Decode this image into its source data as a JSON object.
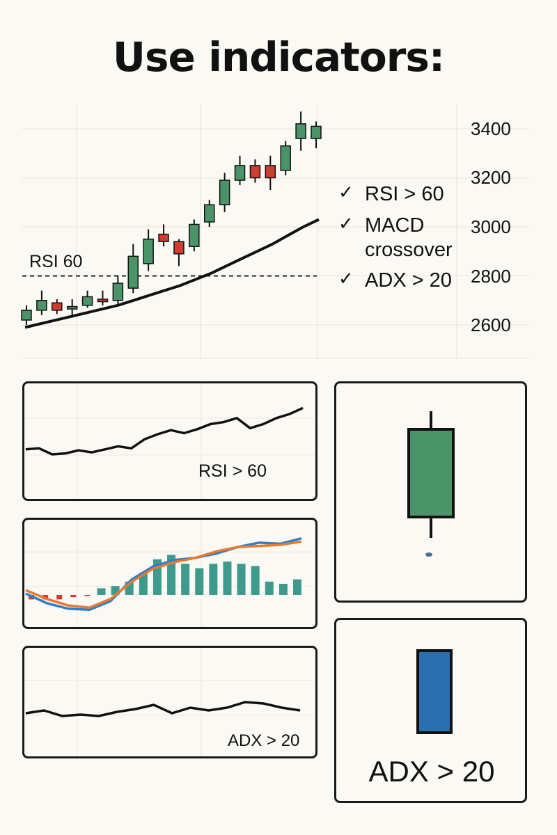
{
  "title": "Use indicators:",
  "chart_data": [
    {
      "type": "candlestick",
      "y_ticks": [
        3400,
        3200,
        3000,
        2800,
        2600
      ],
      "ylim": [
        2540,
        3470
      ],
      "threshold": {
        "label": "RSI 60",
        "value": 2800
      },
      "candles": [
        {
          "o": 2620,
          "c": 2660,
          "h": 2680,
          "l": 2600,
          "dir": "up"
        },
        {
          "o": 2660,
          "c": 2700,
          "h": 2740,
          "l": 2640,
          "dir": "up"
        },
        {
          "o": 2690,
          "c": 2660,
          "h": 2705,
          "l": 2645,
          "dir": "down"
        },
        {
          "o": 2665,
          "c": 2675,
          "h": 2705,
          "l": 2630,
          "dir": "up"
        },
        {
          "o": 2680,
          "c": 2715,
          "h": 2740,
          "l": 2670,
          "dir": "up"
        },
        {
          "o": 2705,
          "c": 2695,
          "h": 2740,
          "l": 2680,
          "dir": "down"
        },
        {
          "o": 2700,
          "c": 2770,
          "h": 2800,
          "l": 2680,
          "dir": "up"
        },
        {
          "o": 2750,
          "c": 2880,
          "h": 2930,
          "l": 2730,
          "dir": "up"
        },
        {
          "o": 2850,
          "c": 2950,
          "h": 2990,
          "l": 2820,
          "dir": "up"
        },
        {
          "o": 2970,
          "c": 2940,
          "h": 3010,
          "l": 2920,
          "dir": "down"
        },
        {
          "o": 2940,
          "c": 2890,
          "h": 2950,
          "l": 2840,
          "dir": "down"
        },
        {
          "o": 2920,
          "c": 3010,
          "h": 3030,
          "l": 2900,
          "dir": "up"
        },
        {
          "o": 3020,
          "c": 3090,
          "h": 3110,
          "l": 3000,
          "dir": "up"
        },
        {
          "o": 3090,
          "c": 3190,
          "h": 3220,
          "l": 3060,
          "dir": "up"
        },
        {
          "o": 3190,
          "c": 3250,
          "h": 3290,
          "l": 3170,
          "dir": "up"
        },
        {
          "o": 3250,
          "c": 3200,
          "h": 3275,
          "l": 3180,
          "dir": "down"
        },
        {
          "o": 3250,
          "c": 3200,
          "h": 3290,
          "l": 3150,
          "dir": "down"
        },
        {
          "o": 3230,
          "c": 3330,
          "h": 3350,
          "l": 3210,
          "dir": "up"
        },
        {
          "o": 3360,
          "c": 3420,
          "h": 3470,
          "l": 3310,
          "dir": "up"
        },
        {
          "o": 3360,
          "c": 3410,
          "h": 3430,
          "l": 3320,
          "dir": "up"
        }
      ],
      "moving_average": [
        2590,
        2605,
        2620,
        2635,
        2650,
        2665,
        2680,
        2700,
        2720,
        2740,
        2760,
        2785,
        2810,
        2840,
        2870,
        2900,
        2930,
        2965,
        3000,
        3030
      ]
    },
    {
      "type": "line",
      "label": "RSI > 60",
      "values": [
        45,
        46,
        40,
        41,
        44,
        42,
        45,
        48,
        46,
        55,
        60,
        64,
        61,
        65,
        70,
        72,
        76,
        66,
        70,
        76,
        80,
        86
      ]
    },
    {
      "type": "line+bar",
      "series": [
        {
          "color": "#2e7ecf",
          "values": [
            47,
            38,
            33,
            32,
            40,
            60,
            72,
            78,
            80,
            84,
            90,
            94,
            93,
            98
          ]
        },
        {
          "color": "#e8792f",
          "values": [
            50,
            42,
            36,
            34,
            42,
            58,
            70,
            76,
            80,
            86,
            90,
            91,
            92,
            95
          ]
        }
      ],
      "histogram": [
        -4,
        -4,
        -4,
        -2,
        -1,
        3,
        4,
        6,
        10,
        16,
        18,
        14,
        12,
        14,
        15,
        14,
        13,
        6,
        5,
        7
      ],
      "ylim": [
        20,
        110
      ]
    },
    {
      "type": "line",
      "label": "ADX > 20",
      "values": [
        30,
        32,
        28,
        29,
        28,
        31,
        33,
        36,
        30,
        34,
        32,
        34,
        38,
        37,
        34,
        32
      ]
    },
    {
      "type": "candle-icon",
      "color": "#4b9469"
    },
    {
      "type": "bar-icon",
      "label": "ADX > 20",
      "color": "#2c6fae"
    }
  ],
  "checklist": [
    "RSI > 60",
    "MACD crossover",
    "ADX > 20"
  ],
  "colors": {
    "up": "#4b9469",
    "down": "#cf3c30",
    "macd_line": "#2e7ecf",
    "signal_line": "#e8792f",
    "histogram": "#3e9a8c"
  }
}
